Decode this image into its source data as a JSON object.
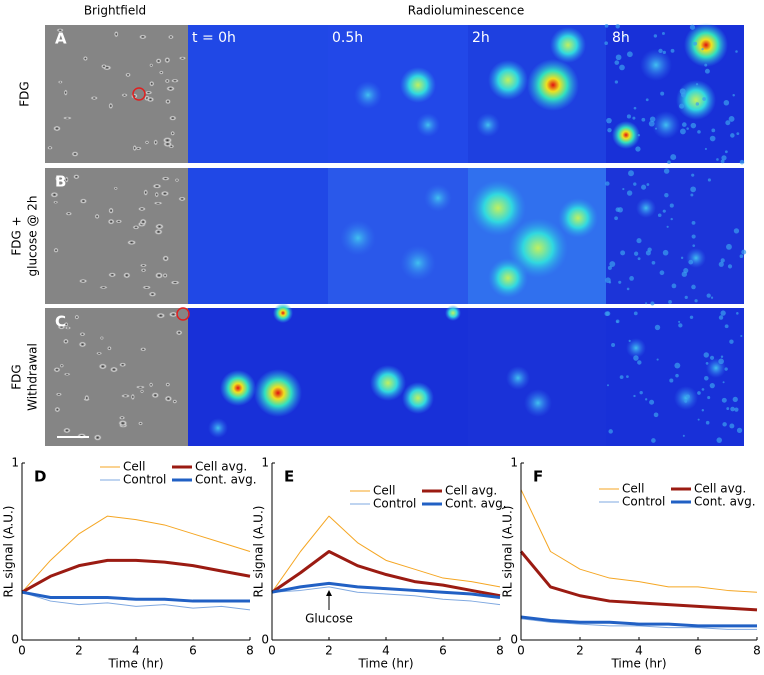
{
  "figure": {
    "col_headers": [
      "Brightfield",
      "Radioluminescence"
    ],
    "time_labels": [
      "t = 0h",
      "0.5h",
      "2h",
      "8h"
    ],
    "rows": [
      {
        "panel": "A",
        "label": [
          "FDG"
        ]
      },
      {
        "panel": "B",
        "label": [
          "FDG +",
          "glucose @ 2h"
        ]
      },
      {
        "panel": "C",
        "label": [
          "FDG",
          "Withdrawal"
        ]
      }
    ]
  },
  "chart_data": [
    {
      "type": "line",
      "panel": "D",
      "xlabel": "Time (hr)",
      "ylabel": "RL signal (A.U.)",
      "x": [
        0,
        1,
        2,
        3,
        4,
        5,
        6,
        7,
        8
      ],
      "xlim": [
        0,
        8
      ],
      "xticks": [
        0,
        2,
        4,
        6,
        8
      ],
      "ylim": [
        0,
        1
      ],
      "yticks": [
        0,
        1
      ],
      "series": [
        {
          "name": "Cell",
          "color": "#f5a623",
          "linewidth": 1,
          "values": [
            0.27,
            0.45,
            0.6,
            0.7,
            0.68,
            0.65,
            0.6,
            0.55,
            0.5
          ]
        },
        {
          "name": "Control",
          "color": "#7fa8e0",
          "linewidth": 1,
          "values": [
            0.27,
            0.22,
            0.2,
            0.21,
            0.19,
            0.2,
            0.18,
            0.19,
            0.17
          ]
        },
        {
          "name": "Cell avg.",
          "color": "#9b1b12",
          "linewidth": 3,
          "values": [
            0.27,
            0.36,
            0.42,
            0.45,
            0.45,
            0.44,
            0.42,
            0.39,
            0.36
          ]
        },
        {
          "name": "Cont. avg.",
          "color": "#2160c4",
          "linewidth": 3,
          "values": [
            0.27,
            0.24,
            0.24,
            0.24,
            0.23,
            0.23,
            0.22,
            0.22,
            0.22
          ]
        }
      ]
    },
    {
      "type": "line",
      "panel": "E",
      "xlabel": "Time (hr)",
      "ylabel": "RL signal (A.U.)",
      "x": [
        0,
        1,
        2,
        3,
        4,
        5,
        6,
        7,
        8
      ],
      "xlim": [
        0,
        8
      ],
      "xticks": [
        0,
        2,
        4,
        6,
        8
      ],
      "ylim": [
        0,
        1
      ],
      "yticks": [
        0,
        1
      ],
      "annotation": {
        "text": "Glucose",
        "x": 2
      },
      "series": [
        {
          "name": "Cell",
          "color": "#f5a623",
          "linewidth": 1,
          "values": [
            0.27,
            0.5,
            0.7,
            0.55,
            0.45,
            0.4,
            0.35,
            0.33,
            0.3
          ]
        },
        {
          "name": "Control",
          "color": "#7fa8e0",
          "linewidth": 1,
          "values": [
            0.27,
            0.28,
            0.3,
            0.27,
            0.26,
            0.25,
            0.23,
            0.22,
            0.2
          ]
        },
        {
          "name": "Cell avg.",
          "color": "#9b1b12",
          "linewidth": 3,
          "values": [
            0.27,
            0.38,
            0.5,
            0.42,
            0.37,
            0.33,
            0.31,
            0.28,
            0.25
          ]
        },
        {
          "name": "Cont. avg.",
          "color": "#2160c4",
          "linewidth": 3,
          "values": [
            0.27,
            0.3,
            0.32,
            0.3,
            0.29,
            0.28,
            0.27,
            0.26,
            0.24
          ]
        }
      ]
    },
    {
      "type": "line",
      "panel": "F",
      "xlabel": "Time (hr)",
      "ylabel": "RL signal (A.U.)",
      "x": [
        0,
        1,
        2,
        3,
        4,
        5,
        6,
        7,
        8
      ],
      "xlim": [
        0,
        8
      ],
      "xticks": [
        0,
        2,
        4,
        6,
        8
      ],
      "ylim": [
        0,
        1
      ],
      "yticks": [
        0,
        1
      ],
      "series": [
        {
          "name": "Cell",
          "color": "#f5a623",
          "linewidth": 1,
          "values": [
            0.85,
            0.5,
            0.4,
            0.35,
            0.33,
            0.3,
            0.3,
            0.28,
            0.27
          ]
        },
        {
          "name": "Control",
          "color": "#7fa8e0",
          "linewidth": 1,
          "values": [
            0.12,
            0.1,
            0.09,
            0.08,
            0.08,
            0.07,
            0.07,
            0.06,
            0.06
          ]
        },
        {
          "name": "Cell avg.",
          "color": "#9b1b12",
          "linewidth": 3,
          "values": [
            0.5,
            0.3,
            0.25,
            0.22,
            0.21,
            0.2,
            0.19,
            0.18,
            0.17
          ]
        },
        {
          "name": "Cont. avg.",
          "color": "#2160c4",
          "linewidth": 3,
          "values": [
            0.13,
            0.11,
            0.1,
            0.1,
            0.09,
            0.09,
            0.08,
            0.08,
            0.08
          ]
        }
      ]
    }
  ]
}
